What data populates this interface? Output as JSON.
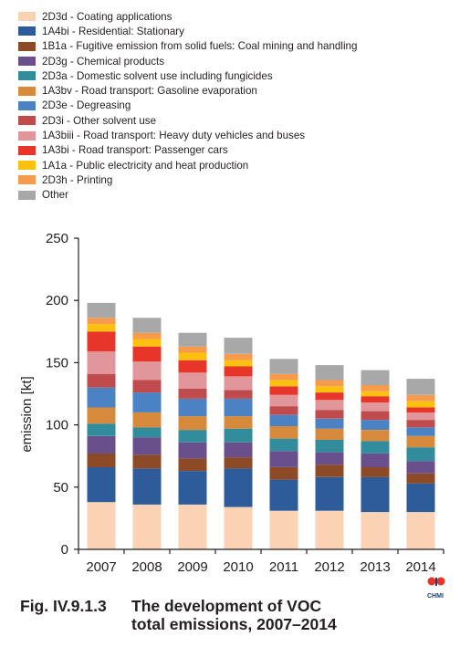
{
  "chart_data": {
    "type": "bar",
    "stacked": true,
    "categories": [
      "2007",
      "2008",
      "2009",
      "2010",
      "2011",
      "2012",
      "2013",
      "2014"
    ],
    "ylabel": "emission [kt]",
    "xlabel": "",
    "ylim": [
      0,
      250
    ],
    "yticks": [
      0,
      50,
      100,
      150,
      200,
      250
    ],
    "grid": false,
    "legend_position": "top",
    "series": [
      {
        "name": "2D3d - Coating applications",
        "color": "#fbd3b4",
        "values": [
          38,
          36,
          36,
          34,
          31,
          31,
          30,
          30
        ]
      },
      {
        "name": "1A4bi - Residential: Stationary",
        "color": "#2e5c9a",
        "values": [
          28,
          29,
          27,
          31,
          25,
          27,
          28,
          23
        ]
      },
      {
        "name": "1B1a - Fugitive emission from solid fuels: Coal mining and handling",
        "color": "#8d4a26",
        "values": [
          11,
          11,
          10,
          9,
          10,
          10,
          8,
          8
        ]
      },
      {
        "name": "2D3g - Chemical products",
        "color": "#6a4f8d",
        "values": [
          14,
          14,
          13,
          12,
          13,
          10,
          11,
          10
        ]
      },
      {
        "name": "2D3a - Domestic solvent use including fungicides",
        "color": "#318c9c",
        "values": [
          10,
          8,
          10,
          11,
          10,
          10,
          10,
          11
        ]
      },
      {
        "name": "1A3bv - Road transport: Gasoline evaporation",
        "color": "#d88a3c",
        "values": [
          13,
          12,
          11,
          10,
          10,
          9,
          9,
          9
        ]
      },
      {
        "name": "2D3e - Degreasing",
        "color": "#4a82c3",
        "values": [
          16,
          16,
          14,
          14,
          9,
          8,
          8,
          7
        ]
      },
      {
        "name": "2D3i - Other solvent use",
        "color": "#bf4b4d",
        "values": [
          11,
          10,
          8,
          7,
          7,
          7,
          7,
          6
        ]
      },
      {
        "name": "1A3biii - Road transport: Heavy duty vehicles and buses",
        "color": "#e0969a",
        "values": [
          18,
          15,
          13,
          11,
          9,
          8,
          7,
          6
        ]
      },
      {
        "name": "1A3bi - Road transport: Passenger cars",
        "color": "#e8352a",
        "values": [
          16,
          12,
          10,
          8,
          7,
          6,
          5,
          4
        ]
      },
      {
        "name": "1A1a - Public electricity and heat production",
        "color": "#fcc10f",
        "values": [
          6,
          6,
          6,
          5,
          5,
          5,
          4,
          5
        ]
      },
      {
        "name": "2D3h - Printing",
        "color": "#f69a4c",
        "values": [
          5,
          5,
          5,
          5,
          5,
          5,
          5,
          5
        ]
      },
      {
        "name": "Other",
        "color": "#a8a8a8",
        "values": [
          12,
          12,
          11,
          13,
          12,
          12,
          12,
          13
        ]
      }
    ]
  },
  "caption": {
    "number": "Fig. IV.9.1.3",
    "line1": "The development of VOC",
    "line2": "total emissions, 2007–2014"
  },
  "logo": {
    "text": "CHMI"
  }
}
